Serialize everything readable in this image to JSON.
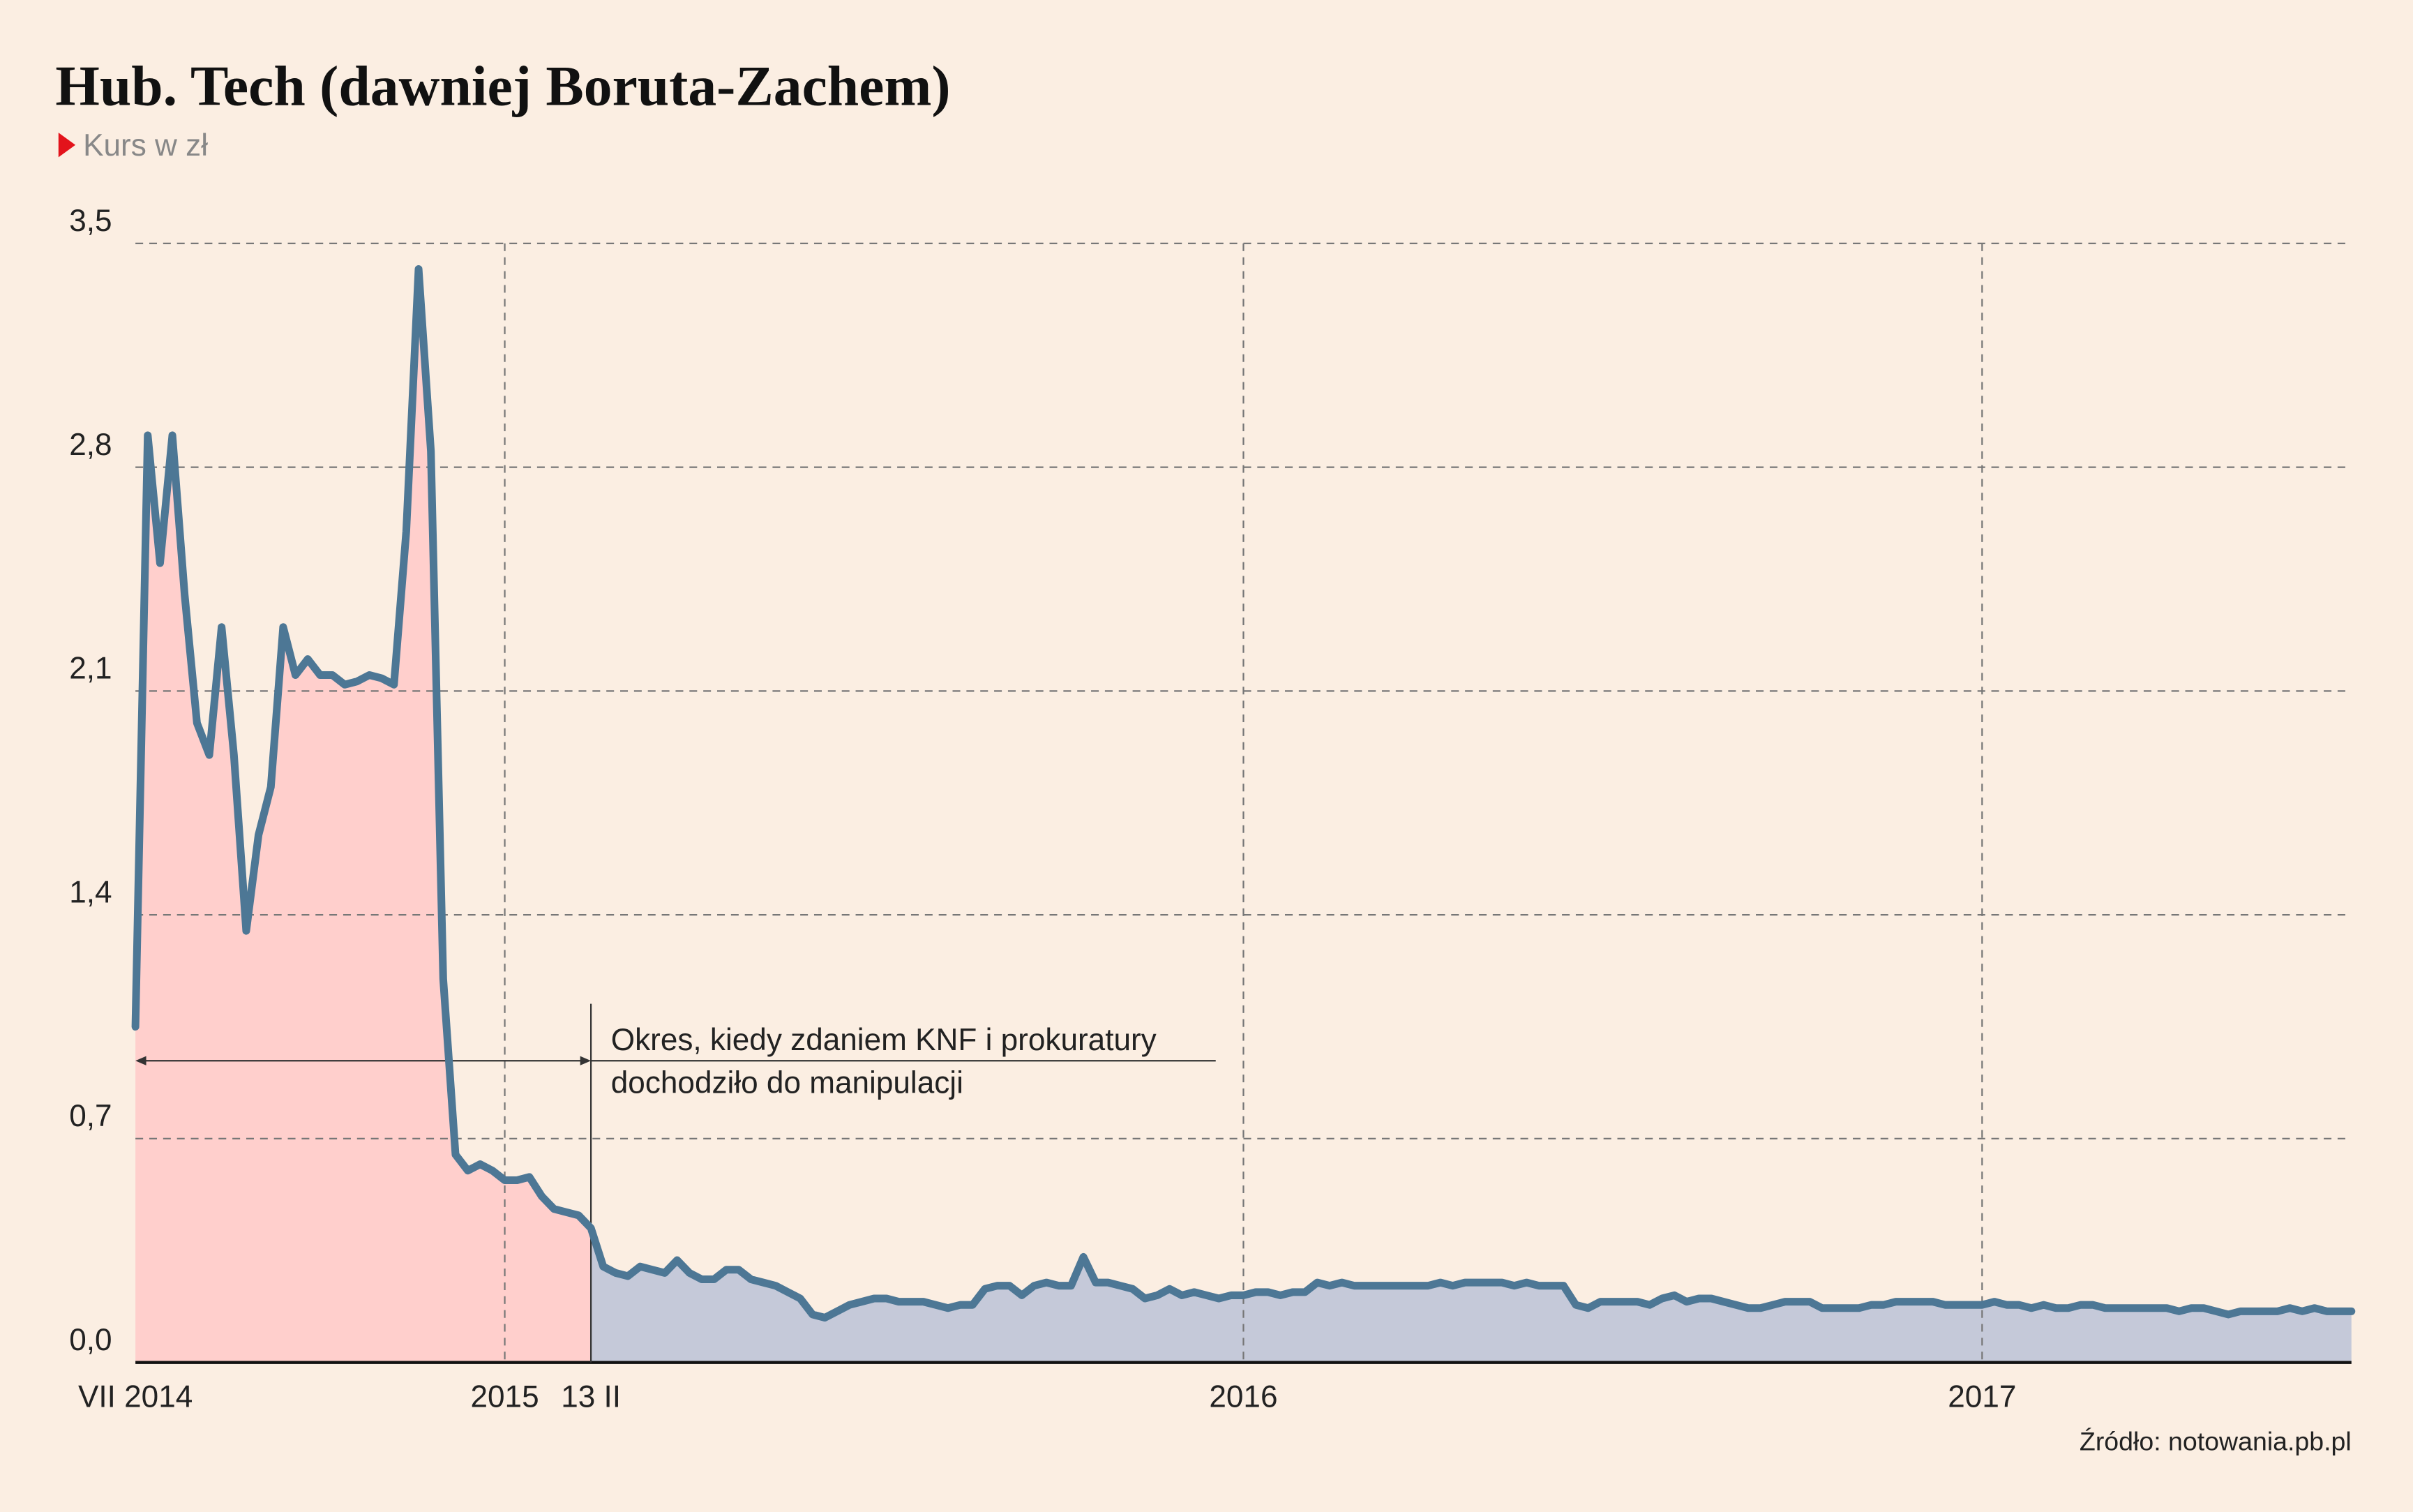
{
  "chart_data": {
    "type": "line",
    "title": "Hub. Tech (dawniej Boruta-Zachem)",
    "subtitle": "Kurs w zł",
    "source": "Źródło: notowania.pb.pl",
    "annotation": [
      "Okres, kiedy zdaniem KNF i prokuratury",
      "dochodziło do manipulacji"
    ],
    "categories": [
      "VII 2014",
      null,
      null,
      null,
      null,
      null,
      null,
      null,
      null,
      null,
      null,
      null,
      null,
      null,
      null,
      null,
      null,
      null,
      null,
      null,
      null,
      null,
      null,
      null,
      null,
      null,
      null,
      null,
      null,
      null,
      "2015",
      null,
      null,
      null,
      null,
      null,
      null,
      "13 II",
      null,
      null,
      null,
      null,
      null,
      null,
      null,
      null,
      null,
      null,
      null,
      null,
      null,
      null,
      null,
      null,
      null,
      null,
      null,
      null,
      null,
      null,
      null,
      null,
      null,
      null,
      null,
      null,
      null,
      null,
      null,
      null,
      null,
      null,
      null,
      null,
      null,
      null,
      null,
      null,
      null,
      null,
      null,
      null,
      null,
      null,
      null,
      null,
      null,
      null,
      null,
      null,
      "2016",
      null,
      null,
      null,
      null,
      null,
      null,
      null,
      null,
      null,
      null,
      null,
      null,
      null,
      null,
      null,
      null,
      null,
      null,
      null,
      null,
      null,
      null,
      null,
      null,
      null,
      null,
      null,
      null,
      null,
      null,
      null,
      null,
      null,
      null,
      null,
      null,
      null,
      null,
      null,
      null,
      null,
      null,
      null,
      null,
      null,
      null,
      null,
      null,
      null,
      null,
      null,
      null,
      null,
      null,
      null,
      null,
      null,
      null,
      null,
      "2017",
      null,
      null,
      null,
      null,
      null,
      null,
      null,
      null,
      null,
      null,
      null,
      null,
      null,
      null,
      null,
      null,
      null,
      null,
      null,
      null,
      null,
      null,
      null,
      null,
      null,
      null,
      null,
      null,
      null,
      null
    ],
    "series": [
      {
        "name": "Kurs",
        "color": "#4d7795",
        "values": [
          1.05,
          2.9,
          2.5,
          2.9,
          2.4,
          2.0,
          1.9,
          2.3,
          1.9,
          1.35,
          1.65,
          1.8,
          2.3,
          2.15,
          2.2,
          2.15,
          2.15,
          2.12,
          2.13,
          2.15,
          2.14,
          2.12,
          2.6,
          3.42,
          2.85,
          1.2,
          0.65,
          0.6,
          0.62,
          0.6,
          0.57,
          0.57,
          0.58,
          0.52,
          0.48,
          0.47,
          0.46,
          0.42,
          0.3,
          0.28,
          0.27,
          0.3,
          0.29,
          0.28,
          0.32,
          0.28,
          0.26,
          0.26,
          0.29,
          0.29,
          0.26,
          0.25,
          0.24,
          0.22,
          0.2,
          0.15,
          0.14,
          0.16,
          0.18,
          0.19,
          0.2,
          0.2,
          0.19,
          0.19,
          0.19,
          0.18,
          0.17,
          0.18,
          0.18,
          0.23,
          0.24,
          0.24,
          0.21,
          0.24,
          0.25,
          0.24,
          0.24,
          0.33,
          0.25,
          0.25,
          0.24,
          0.23,
          0.2,
          0.21,
          0.23,
          0.21,
          0.22,
          0.21,
          0.2,
          0.21,
          0.21,
          0.22,
          0.22,
          0.21,
          0.22,
          0.22,
          0.25,
          0.24,
          0.25,
          0.24,
          0.24,
          0.24,
          0.24,
          0.24,
          0.24,
          0.24,
          0.25,
          0.24,
          0.25,
          0.25,
          0.25,
          0.25,
          0.24,
          0.25,
          0.24,
          0.24,
          0.24,
          0.18,
          0.17,
          0.19,
          0.19,
          0.19,
          0.19,
          0.18,
          0.2,
          0.21,
          0.19,
          0.2,
          0.2,
          0.19,
          0.18,
          0.17,
          0.17,
          0.18,
          0.19,
          0.19,
          0.19,
          0.17,
          0.17,
          0.17,
          0.17,
          0.18,
          0.18,
          0.19,
          0.19,
          0.19,
          0.19,
          0.18,
          0.18,
          0.18,
          0.18,
          0.19,
          0.18,
          0.18,
          0.17,
          0.18,
          0.17,
          0.17,
          0.18,
          0.18,
          0.17,
          0.17,
          0.17,
          0.17,
          0.17,
          0.17,
          0.16,
          0.17,
          0.17,
          0.16,
          0.15,
          0.16,
          0.16,
          0.16,
          0.16,
          0.17,
          0.16,
          0.17,
          0.16,
          0.16,
          0.16
        ]
      }
    ],
    "ylim": [
      0,
      3.5
    ],
    "yticks": [
      {
        "value": 0,
        "label": "0,0"
      },
      {
        "value": 0.7,
        "label": "0,7"
      },
      {
        "value": 1.4,
        "label": "1,4"
      },
      {
        "value": 2.1,
        "label": "2,1"
      },
      {
        "value": 2.8,
        "label": "2,8"
      },
      {
        "value": 3.5,
        "label": "3,5"
      }
    ],
    "grid": true,
    "fill_colors": [
      "#ffcfcc",
      "#c5c9d9"
    ],
    "marker_color": "#e3131b"
  }
}
